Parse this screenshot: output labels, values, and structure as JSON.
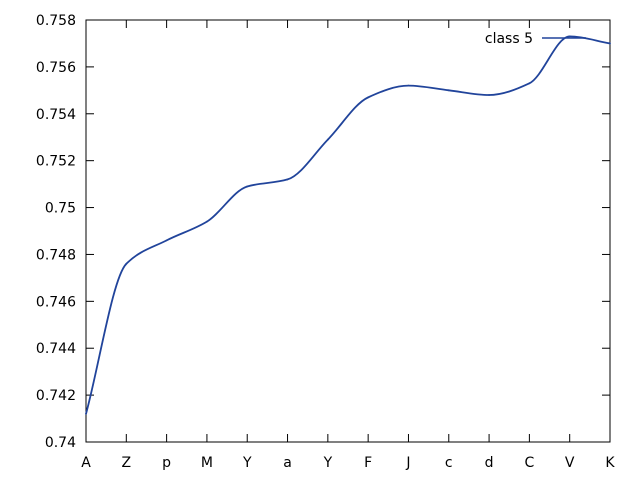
{
  "chart_data": {
    "type": "line",
    "title": "",
    "xlabel": "",
    "ylabel": "",
    "categories": [
      "A",
      "Z",
      "p",
      "M",
      "Y",
      "a",
      "Y",
      "F",
      "J",
      "c",
      "d",
      "C",
      "V",
      "K"
    ],
    "y_ticks": [
      "0.74",
      "0.742",
      "0.744",
      "0.746",
      "0.748",
      "0.75",
      "0.752",
      "0.754",
      "0.756",
      "0.758"
    ],
    "ylim": [
      0.74,
      0.758
    ],
    "grid": false,
    "legend_position": "top-right",
    "smooth": true,
    "series": [
      {
        "name": "class 5",
        "color": "#21449b",
        "values": [
          0.7412,
          0.7476,
          0.7486,
          0.7494,
          0.7509,
          0.7512,
          0.7529,
          0.7547,
          0.7552,
          0.755,
          0.7548,
          0.7553,
          0.7573,
          0.757
        ]
      }
    ]
  }
}
